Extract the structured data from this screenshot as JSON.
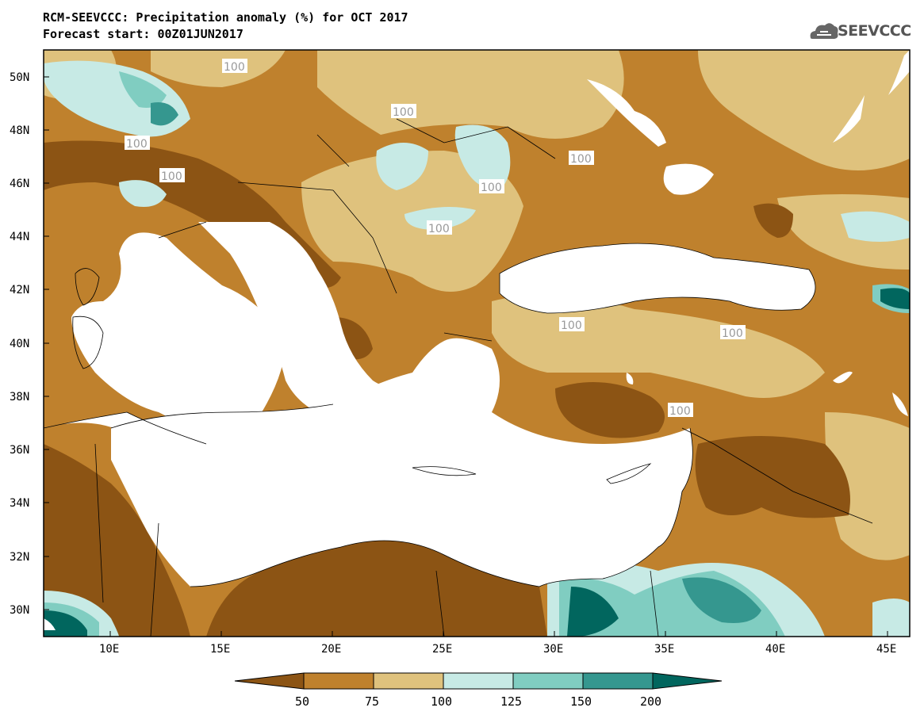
{
  "header": {
    "title_line1": "RCM-SEEVCCC: Precipitation anomaly (%) for OCT 2017",
    "title_line2": "Forecast start: 00Z01JUN2017"
  },
  "logo": {
    "text": "SEEVCCC",
    "icon": "cloud-icon"
  },
  "map": {
    "lat_labels": [
      "50N",
      "48N",
      "46N",
      "44N",
      "42N",
      "40N",
      "38N",
      "36N",
      "34N",
      "32N",
      "30N"
    ],
    "lon_labels": [
      "10E",
      "15E",
      "20E",
      "25E",
      "30E",
      "35E",
      "40E",
      "45E"
    ],
    "contour_label": "100",
    "extent": {
      "lon_min": 7,
      "lon_max": 46,
      "lat_min": 29,
      "lat_max": 51
    }
  },
  "colorbar": {
    "ticks": [
      "50",
      "75",
      "100",
      "125",
      "150",
      "200"
    ],
    "colors": [
      "#8c5414",
      "#bf812d",
      "#dfc27d",
      "#c7eae5",
      "#80cdc1",
      "#35978f",
      "#01665e"
    ]
  }
}
